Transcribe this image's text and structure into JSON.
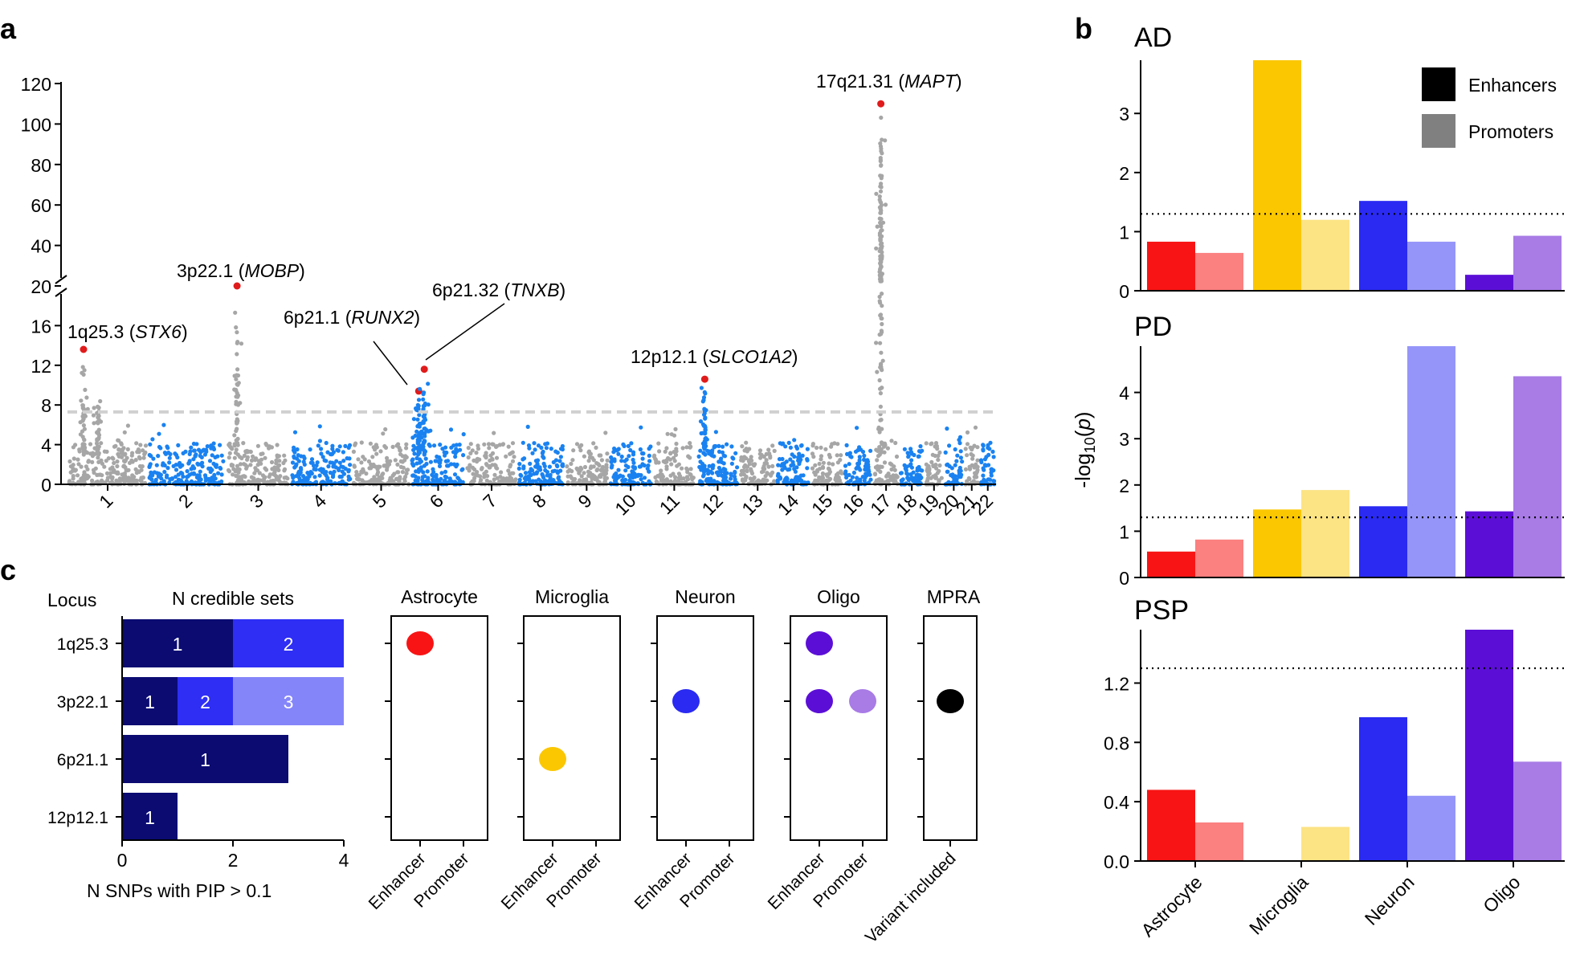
{
  "panel_labels": [
    "a",
    "b",
    "c"
  ],
  "chart_data": [
    {
      "id": "manhattan",
      "type": "scatter",
      "title": "",
      "xlabel": "",
      "ylabel": "",
      "chromosomes": [
        "1",
        "2",
        "3",
        "4",
        "5",
        "6",
        "7",
        "8",
        "9",
        "10",
        "11",
        "12",
        "13",
        "14",
        "15",
        "16",
        "17",
        "18",
        "19",
        "20",
        "21",
        "22"
      ],
      "y_ticks_lower": [
        "0",
        "4",
        "8",
        "12",
        "16",
        "20"
      ],
      "y_ticks_upper": [
        "40",
        "60",
        "80",
        "100",
        "120"
      ],
      "ylim_lower": [
        0,
        20
      ],
      "ylim_upper": [
        20,
        120
      ],
      "significance_threshold": 7.3,
      "colors": {
        "odd": "#a6a6a6",
        "even": "#1a82f0",
        "lead": "#e01b1b",
        "threshold": "#d0d0d0"
      },
      "peaks": [
        {
          "chromosome": "1",
          "pos": 0.2,
          "y": 13.6,
          "highlight": true
        },
        {
          "chromosome": "1",
          "pos": 0.38,
          "y": 9.0,
          "highlight": false
        },
        {
          "chromosome": "3",
          "pos": 0.17,
          "y": 20.0,
          "highlight": true
        },
        {
          "chromosome": "6",
          "pos": 0.15,
          "y": 9.4,
          "highlight": true
        },
        {
          "chromosome": "6",
          "pos": 0.25,
          "y": 11.6,
          "highlight": true
        },
        {
          "chromosome": "12",
          "pos": 0.2,
          "y": 10.6,
          "highlight": true
        },
        {
          "chromosome": "17",
          "pos": 0.3,
          "y": 110,
          "highlight": true
        }
      ],
      "annotations": [
        {
          "locus": "1q25.3",
          "gene": "STX6"
        },
        {
          "locus": "3p22.1",
          "gene": "MOBP"
        },
        {
          "locus": "6p21.1",
          "gene": "RUNX2"
        },
        {
          "locus": "6p21.32",
          "gene": "TNXB"
        },
        {
          "locus": "12p12.1",
          "gene": "SLCO1A2"
        },
        {
          "locus": "17q21.31",
          "gene": "MAPT"
        }
      ]
    },
    {
      "id": "enrichment",
      "type": "bar",
      "ylabel_prefix": "-log",
      "ylabel_sub": "10",
      "ylabel_arg": "p",
      "categories": [
        "Astrocyte",
        "Microglia",
        "Neuron",
        "Oligo"
      ],
      "legend": [
        "Enhancers",
        "Promoters"
      ],
      "legend_placement": "top-right",
      "legend_colors": [
        "#000000",
        "#808080"
      ],
      "enhancer_colors": [
        "#f81414",
        "#fbc700",
        "#2a2af2",
        "#5b0fd6"
      ],
      "promoter_colors": [
        "#fb8080",
        "#fce384",
        "#9595f9",
        "#a87be5"
      ],
      "threshold": 1.3,
      "panels": [
        {
          "title": "AD",
          "ylim": [
            0,
            3.9
          ],
          "ticks": [
            "0",
            "1",
            "2",
            "3"
          ],
          "enhancers": [
            0.83,
            3.9,
            1.52,
            0.27
          ],
          "promoters": [
            0.64,
            1.2,
            0.83,
            0.93
          ]
        },
        {
          "title": "PD",
          "ylim": [
            0,
            5.0
          ],
          "ticks": [
            "0",
            "1",
            "2",
            "3",
            "4"
          ],
          "enhancers": [
            0.56,
            1.47,
            1.54,
            1.43
          ],
          "promoters": [
            0.82,
            1.89,
            5.0,
            4.35
          ]
        },
        {
          "title": "PSP",
          "ylim": [
            0,
            1.56
          ],
          "ticks": [
            "0.0",
            "0.4",
            "0.8",
            "1.2"
          ],
          "enhancers": [
            0.48,
            0.0,
            0.97,
            1.56
          ],
          "promoters": [
            0.26,
            0.23,
            0.44,
            0.67
          ]
        }
      ]
    },
    {
      "id": "credible_sets",
      "type": "bar",
      "title": "N credible sets",
      "row_header": "Locus",
      "xlabel": "N SNPs with PIP > 0.1",
      "xlim": [
        0,
        4
      ],
      "x_ticks": [
        "0",
        "2",
        "4"
      ],
      "loci": [
        "1q25.3",
        "3p22.1",
        "6p21.1",
        "12p12.1"
      ],
      "set_colors": [
        "#0b0b72",
        "#2e2ef5",
        "#8585fa"
      ],
      "stacks": [
        [
          {
            "set": "1",
            "value": 2
          },
          {
            "set": "2",
            "value": 2
          }
        ],
        [
          {
            "set": "1",
            "value": 1
          },
          {
            "set": "2",
            "value": 1
          },
          {
            "set": "3",
            "value": 2
          }
        ],
        [
          {
            "set": "1",
            "value": 3
          }
        ],
        [
          {
            "set": "1",
            "value": 1
          }
        ]
      ]
    },
    {
      "id": "overlap",
      "type": "scatter",
      "panels": [
        {
          "title": "Astrocyte",
          "columns": [
            "Enhancer",
            "Promoter"
          ],
          "dots": [
            {
              "row": 0,
              "col": 0,
              "color": "#f81414"
            }
          ]
        },
        {
          "title": "Microglia",
          "columns": [
            "Enhancer",
            "Promoter"
          ],
          "dots": [
            {
              "row": 2,
              "col": 0,
              "color": "#fbc700"
            }
          ]
        },
        {
          "title": "Neuron",
          "columns": [
            "Enhancer",
            "Promoter"
          ],
          "dots": [
            {
              "row": 1,
              "col": 0,
              "color": "#2a2af2"
            }
          ]
        },
        {
          "title": "Oligo",
          "columns": [
            "Enhancer",
            "Promoter"
          ],
          "dots": [
            {
              "row": 0,
              "col": 0,
              "color": "#5b0fd6"
            },
            {
              "row": 1,
              "col": 0,
              "color": "#5b0fd6"
            },
            {
              "row": 1,
              "col": 1,
              "color": "#a87be5"
            }
          ]
        },
        {
          "title": "MPRA",
          "columns": [
            "Variant included"
          ],
          "dots": [
            {
              "row": 1,
              "col": 0,
              "color": "#000000"
            }
          ]
        }
      ]
    }
  ]
}
